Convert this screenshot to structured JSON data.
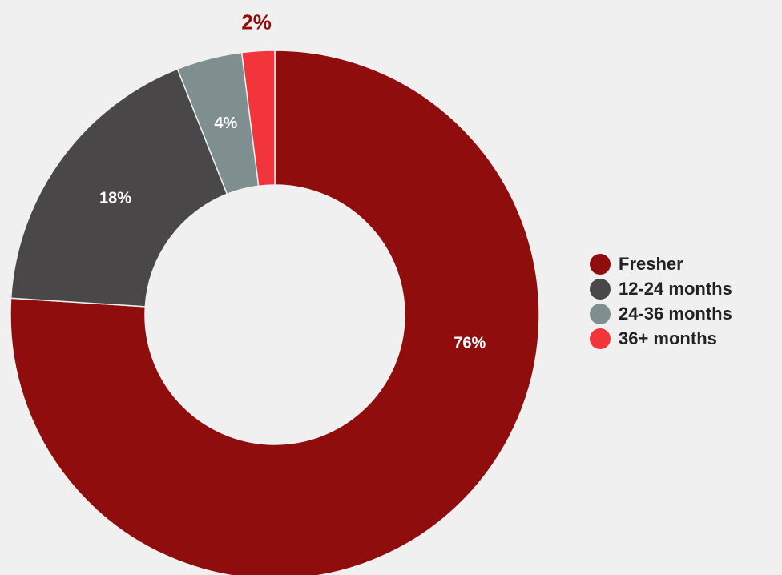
{
  "chart_data": {
    "type": "pie",
    "subtype": "donut",
    "title": "",
    "categories": [
      "Fresher",
      "12-24 months",
      "24-36 months",
      "36+ months"
    ],
    "values": [
      76,
      18,
      4,
      2
    ],
    "unit": "%",
    "data_labels": [
      "76%",
      "18%",
      "4%",
      "2%"
    ],
    "colors": [
      "#8f0d0d",
      "#4a4748",
      "#7f8e8f",
      "#f2353b"
    ],
    "label_colors": [
      "#ffffff",
      "#ffffff",
      "#ffffff",
      "#8f0d0d"
    ],
    "legend_position": "right",
    "start": "top, clockwise"
  },
  "legend": {
    "items": [
      {
        "label": "Fresher",
        "color": "#8f0d0d"
      },
      {
        "label": "12-24 months",
        "color": "#4a4748"
      },
      {
        "label": "24-36 months",
        "color": "#7f8e8f"
      },
      {
        "label": "36+ months",
        "color": "#f2353b"
      }
    ]
  }
}
